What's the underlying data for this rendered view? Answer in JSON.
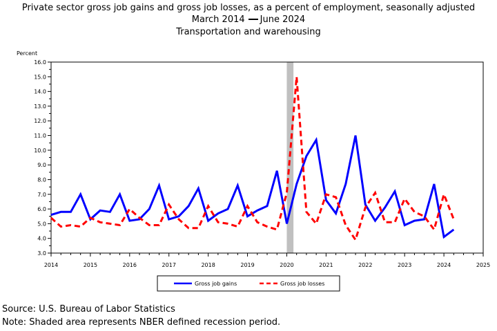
{
  "title": "Private sector gross job gains and gross job losses, as a percent of employment, seasonally adjusted",
  "subtitle_start": "March 2014",
  "subtitle_end": "June 2024",
  "subtitle2": "Transportation and warehousing",
  "footer": {
    "source": "Source: U.S. Bureau of Labor Statistics",
    "note": "Note: Shaded area represents NBER defined recession period."
  },
  "colors": {
    "gains": "#0000ff",
    "losses": "#ff0000",
    "recession": "#c0c0c0"
  },
  "chart_data": {
    "type": "line",
    "ylabel": "Percent",
    "ylim": [
      3.0,
      16.0
    ],
    "yticks": [
      "3.0",
      "4.0",
      "5.0",
      "6.0",
      "7.0",
      "8.0",
      "9.0",
      "10.0",
      "11.0",
      "12.0",
      "13.0",
      "14.0",
      "15.0",
      "16.0"
    ],
    "xlim": [
      2014,
      2025
    ],
    "xticks": [
      "2014",
      "2015",
      "2016",
      "2017",
      "2018",
      "2019",
      "2020",
      "2021",
      "2022",
      "2023",
      "2024",
      "2025"
    ],
    "grid": false,
    "legend_position": "bottom",
    "recession": {
      "start": 2020.0,
      "end": 2020.17
    },
    "series": [
      {
        "name": "Gross job gains",
        "color": "#0000ff",
        "style": "solid",
        "x": [
          2014.0,
          2014.25,
          2014.5,
          2014.75,
          2015.0,
          2015.25,
          2015.5,
          2015.75,
          2016.0,
          2016.25,
          2016.5,
          2016.75,
          2017.0,
          2017.25,
          2017.5,
          2017.75,
          2018.0,
          2018.25,
          2018.5,
          2018.75,
          2019.0,
          2019.25,
          2019.5,
          2019.75,
          2020.0,
          2020.25,
          2020.5,
          2020.75,
          2021.0,
          2021.25,
          2021.5,
          2021.75,
          2022.0,
          2022.25,
          2022.5,
          2022.75,
          2023.0,
          2023.25,
          2023.5,
          2023.75,
          2024.0,
          2024.25
        ],
        "values": [
          5.6,
          5.8,
          5.8,
          7.0,
          5.3,
          5.9,
          5.8,
          7.0,
          5.2,
          5.3,
          6.0,
          7.6,
          5.3,
          5.5,
          6.2,
          7.4,
          5.2,
          5.7,
          6.0,
          7.6,
          5.5,
          5.9,
          6.2,
          8.6,
          5.0,
          7.7,
          9.6,
          10.7,
          6.6,
          5.7,
          7.7,
          11.0,
          6.3,
          5.2,
          6.1,
          7.2,
          4.9,
          5.2,
          5.3,
          7.7,
          4.1,
          4.6
        ]
      },
      {
        "name": "Gross job losses",
        "color": "#ff0000",
        "style": "dashed",
        "x": [
          2014.0,
          2014.25,
          2014.5,
          2014.75,
          2015.0,
          2015.25,
          2015.5,
          2015.75,
          2016.0,
          2016.25,
          2016.5,
          2016.75,
          2017.0,
          2017.25,
          2017.5,
          2017.75,
          2018.0,
          2018.25,
          2018.5,
          2018.75,
          2019.0,
          2019.25,
          2019.5,
          2019.75,
          2020.0,
          2020.25,
          2020.5,
          2020.75,
          2021.0,
          2021.25,
          2021.5,
          2021.75,
          2022.0,
          2022.25,
          2022.5,
          2022.75,
          2023.0,
          2023.25,
          2023.5,
          2023.75,
          2024.0,
          2024.25
        ],
        "values": [
          5.4,
          4.8,
          4.9,
          4.8,
          5.4,
          5.1,
          5.0,
          4.9,
          6.0,
          5.4,
          4.9,
          4.9,
          6.3,
          5.3,
          4.7,
          4.7,
          6.2,
          5.1,
          5.0,
          4.8,
          6.2,
          5.1,
          4.8,
          4.6,
          7.1,
          15.0,
          5.8,
          5.0,
          7.0,
          6.8,
          4.9,
          3.9,
          6.1,
          7.1,
          5.1,
          5.1,
          6.7,
          5.8,
          5.5,
          4.6,
          7.0,
          5.3
        ]
      }
    ]
  }
}
